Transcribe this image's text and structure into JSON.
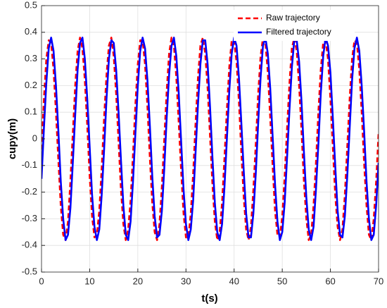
{
  "chart_data": {
    "type": "line",
    "xlabel": "t(s)",
    "ylabel": "cupy(m)",
    "x": [
      0,
      0.5,
      1,
      1.5,
      2,
      2.5,
      3,
      3.5,
      4,
      4.5,
      5,
      5.5,
      6,
      6.5,
      7,
      7.5,
      8,
      8.5,
      9,
      9.5,
      10,
      10.5,
      11,
      11.5,
      12,
      12.5,
      13,
      13.5,
      14,
      14.5,
      15,
      15.5,
      16,
      16.5,
      17,
      17.5,
      18,
      18.5,
      19,
      19.5,
      20,
      20.5,
      21,
      21.5,
      22,
      22.5,
      23,
      23.5,
      24,
      24.5,
      25,
      25.5,
      26,
      26.5,
      27,
      27.5,
      28,
      28.5,
      29,
      29.5,
      30,
      30.5,
      31,
      31.5,
      32,
      32.5,
      33,
      33.5,
      34,
      34.5,
      35,
      35.5,
      36,
      36.5,
      37,
      37.5,
      38,
      38.5,
      39,
      39.5,
      40,
      40.5,
      41,
      41.5,
      42,
      42.5,
      43,
      43.5,
      44,
      44.5,
      45,
      45.5,
      46,
      46.5,
      47,
      47.5,
      48,
      48.5,
      49,
      49.5,
      50,
      50.5,
      51,
      51.5,
      52,
      52.5,
      53,
      53.5,
      54,
      54.5,
      55,
      55.5,
      56,
      56.5,
      57,
      57.5,
      58,
      58.5,
      59,
      59.5,
      60,
      60.5,
      61,
      61.5,
      62,
      62.5,
      63,
      63.5,
      64,
      64.5,
      65,
      65.5,
      66,
      66.5,
      67,
      67.5,
      68,
      68.5,
      69,
      69.5,
      70
    ],
    "series": [
      {
        "name": "Raw trajectory",
        "color": "#ff0000",
        "dash": true,
        "values": [
          -0.04,
          0.15,
          0.3,
          0.37,
          0.36,
          0.26,
          0.1,
          -0.08,
          -0.25,
          -0.36,
          -0.38,
          -0.31,
          -0.16,
          0.02,
          0.2,
          0.33,
          0.38,
          0.34,
          0.22,
          0.05,
          -0.14,
          -0.29,
          -0.37,
          -0.36,
          -0.27,
          -0.11,
          0.08,
          0.24,
          0.35,
          0.38,
          0.31,
          0.17,
          -0.01,
          -0.19,
          -0.32,
          -0.38,
          -0.34,
          -0.23,
          -0.06,
          0.13,
          0.28,
          0.37,
          0.37,
          0.28,
          0.12,
          -0.07,
          -0.24,
          -0.35,
          -0.38,
          -0.32,
          -0.18,
          0.0,
          0.18,
          0.32,
          0.38,
          0.35,
          0.23,
          0.06,
          -0.12,
          -0.28,
          -0.37,
          -0.37,
          -0.28,
          -0.13,
          0.06,
          0.23,
          0.35,
          0.38,
          0.32,
          0.19,
          0.01,
          -0.17,
          -0.31,
          -0.38,
          -0.35,
          -0.24,
          -0.07,
          0.11,
          0.27,
          0.37,
          0.37,
          0.29,
          0.14,
          -0.05,
          -0.22,
          -0.34,
          -0.38,
          -0.33,
          -0.19,
          -0.02,
          0.17,
          0.31,
          0.38,
          0.36,
          0.25,
          0.08,
          -0.1,
          -0.27,
          -0.36,
          -0.37,
          -0.29,
          -0.14,
          0.04,
          0.21,
          0.34,
          0.38,
          0.33,
          0.2,
          0.03,
          -0.16,
          -0.3,
          -0.38,
          -0.36,
          -0.25,
          -0.09,
          0.1,
          0.26,
          0.36,
          0.37,
          0.3,
          0.15,
          -0.03,
          -0.21,
          -0.33,
          -0.38,
          -0.34,
          -0.21,
          -0.03,
          0.15,
          0.3,
          0.37,
          0.36,
          0.26,
          0.1,
          -0.09,
          -0.25,
          -0.36,
          -0.38,
          -0.3,
          -0.16,
          0.02
        ]
      },
      {
        "name": "Filtered trajectory",
        "color": "#0000ff",
        "dash": false,
        "values": [
          -0.15,
          0.04,
          0.21,
          0.34,
          0.38,
          0.33,
          0.2,
          0.03,
          -0.16,
          -0.3,
          -0.38,
          -0.36,
          -0.26,
          -0.09,
          0.09,
          0.26,
          0.36,
          0.38,
          0.3,
          0.15,
          -0.03,
          -0.21,
          -0.33,
          -0.38,
          -0.34,
          -0.21,
          -0.04,
          0.15,
          0.3,
          0.37,
          0.36,
          0.26,
          0.1,
          -0.08,
          -0.25,
          -0.36,
          -0.38,
          -0.31,
          -0.16,
          0.02,
          0.2,
          0.33,
          0.38,
          0.34,
          0.22,
          0.05,
          -0.14,
          -0.29,
          -0.37,
          -0.36,
          -0.27,
          -0.11,
          0.08,
          0.24,
          0.35,
          0.38,
          0.31,
          0.17,
          -0.01,
          -0.19,
          -0.32,
          -0.38,
          -0.34,
          -0.23,
          -0.05,
          0.13,
          0.28,
          0.37,
          0.37,
          0.28,
          0.12,
          -0.07,
          -0.24,
          -0.35,
          -0.38,
          -0.32,
          -0.18,
          0.0,
          0.18,
          0.32,
          0.38,
          0.35,
          0.23,
          0.06,
          -0.12,
          -0.28,
          -0.37,
          -0.37,
          -0.28,
          -0.13,
          0.06,
          0.23,
          0.35,
          0.38,
          0.32,
          0.19,
          0.01,
          -0.17,
          -0.31,
          -0.38,
          -0.35,
          -0.24,
          -0.07,
          0.11,
          0.27,
          0.37,
          0.37,
          0.29,
          0.14,
          -0.05,
          -0.22,
          -0.34,
          -0.38,
          -0.33,
          -0.19,
          -0.02,
          0.17,
          0.31,
          0.38,
          0.35,
          0.25,
          0.08,
          -0.1,
          -0.27,
          -0.36,
          -0.37,
          -0.29,
          -0.14,
          0.04,
          0.22,
          0.34,
          0.38,
          0.33,
          0.2,
          0.03,
          -0.16,
          -0.3,
          -0.38,
          -0.36,
          -0.25,
          -0.09
        ]
      }
    ],
    "xlim": [
      0,
      70
    ],
    "xticks": [
      0,
      10,
      20,
      30,
      40,
      50,
      60,
      70
    ],
    "ylim": [
      -0.5,
      0.5
    ],
    "yticks": [
      -0.5,
      -0.4,
      -0.3,
      -0.2,
      -0.1,
      0,
      0.1,
      0.2,
      0.3,
      0.4,
      0.5
    ],
    "grid": true,
    "legend": "upper right"
  }
}
